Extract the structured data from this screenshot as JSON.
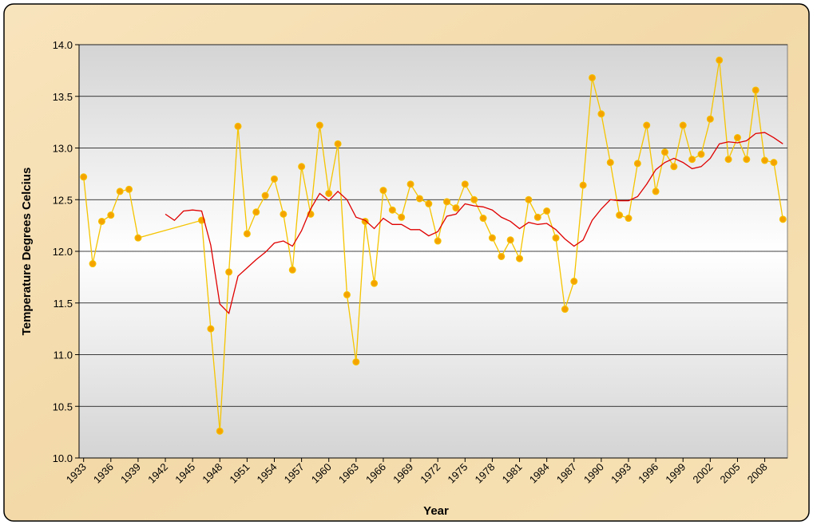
{
  "chart_data": {
    "type": "line",
    "x_label": "Year",
    "y_label": "Temperature Degrees Celcius",
    "xlim": [
      1932.5,
      2010.5
    ],
    "xticks": [
      1933,
      1936,
      1939,
      1942,
      1945,
      1948,
      1951,
      1954,
      1957,
      1960,
      1963,
      1966,
      1969,
      1972,
      1975,
      1978,
      1981,
      1984,
      1987,
      1990,
      1993,
      1996,
      1999,
      2002,
      2005,
      2008
    ],
    "ylim": [
      10,
      14
    ],
    "yticks": [
      {
        "value": 10,
        "label": "10.0"
      },
      {
        "value": 10.5,
        "label": "10.5"
      },
      {
        "value": 11,
        "label": "11.0"
      },
      {
        "value": 11.5,
        "label": "11.5"
      },
      {
        "value": 12,
        "label": "12.0"
      },
      {
        "value": 12.5,
        "label": "12.5"
      },
      {
        "value": 13,
        "label": "13.0"
      },
      {
        "value": 13.5,
        "label": "13.5"
      },
      {
        "value": 14,
        "label": "14.0"
      }
    ],
    "grid": true,
    "series": [
      {
        "color": "#f5c400",
        "marker": "#f5a300",
        "x": [
          1933,
          1934,
          1935,
          1936,
          1937,
          1938,
          1939,
          1946,
          1947,
          1948,
          1949,
          1950,
          1951,
          1952,
          1953,
          1954,
          1955,
          1956,
          1957,
          1958,
          1959,
          1960,
          1961,
          1962,
          1963,
          1964,
          1965,
          1966,
          1967,
          1968,
          1969,
          1970,
          1971,
          1972,
          1973,
          1974,
          1975,
          1976,
          1977,
          1978,
          1979,
          1980,
          1981,
          1982,
          1983,
          1984,
          1985,
          1986,
          1987,
          1988,
          1989,
          1990,
          1991,
          1992,
          1993,
          1994,
          1995,
          1996,
          1997,
          1998,
          1999,
          2000,
          2001,
          2002,
          2003,
          2004,
          2005,
          2006,
          2007,
          2008,
          2009,
          2010
        ],
        "values": [
          12.72,
          11.88,
          12.29,
          12.35,
          12.58,
          12.6,
          12.13,
          12.3,
          11.25,
          10.26,
          11.8,
          13.21,
          12.17,
          12.38,
          12.54,
          12.7,
          12.36,
          11.82,
          12.82,
          12.36,
          13.22,
          12.56,
          13.04,
          11.58,
          10.93,
          12.29,
          11.69,
          12.59,
          12.4,
          12.33,
          12.65,
          12.51,
          12.46,
          12.1,
          12.48,
          12.42,
          12.65,
          12.5,
          12.32,
          12.13,
          11.95,
          12.11,
          11.93,
          12.5,
          12.33,
          12.39,
          12.13,
          11.44,
          11.71,
          12.64,
          13.68,
          13.33,
          12.86,
          12.35,
          12.32,
          12.85,
          13.22,
          12.58,
          12.96,
          12.82,
          13.22,
          12.89,
          12.94,
          13.28,
          13.85,
          12.89,
          13.1,
          12.89,
          13.56,
          12.88,
          12.86,
          12.31
        ]
      },
      {
        "color": "#e00000",
        "x": [
          1942,
          1943,
          1944,
          1945,
          1946,
          1947,
          1948,
          1949,
          1950,
          1951,
          1952,
          1953,
          1954,
          1955,
          1956,
          1957,
          1958,
          1959,
          1960,
          1961,
          1962,
          1963,
          1964,
          1965,
          1966,
          1967,
          1968,
          1969,
          1970,
          1971,
          1972,
          1973,
          1974,
          1975,
          1976,
          1977,
          1978,
          1979,
          1980,
          1981,
          1982,
          1983,
          1984,
          1985,
          1986,
          1987,
          1988,
          1989,
          1990,
          1991,
          1992,
          1993,
          1994,
          1995,
          1996,
          1997,
          1998,
          1999,
          2000,
          2001,
          2002,
          2003,
          2004,
          2005,
          2006,
          2007,
          2008,
          2009,
          2010
        ],
        "values": [
          12.36,
          12.3,
          12.39,
          12.4,
          12.39,
          12.06,
          11.49,
          11.4,
          11.76,
          11.84,
          11.92,
          11.99,
          12.08,
          12.1,
          12.05,
          12.2,
          12.41,
          12.56,
          12.49,
          12.58,
          12.5,
          12.33,
          12.3,
          12.22,
          12.32,
          12.26,
          12.26,
          12.21,
          12.21,
          12.15,
          12.19,
          12.34,
          12.36,
          12.46,
          12.44,
          12.43,
          12.4,
          12.33,
          12.29,
          12.22,
          12.28,
          12.26,
          12.27,
          12.21,
          12.12,
          12.05,
          12.11,
          12.3,
          12.41,
          12.5,
          12.49,
          12.49,
          12.53,
          12.65,
          12.79,
          12.86,
          12.9,
          12.86,
          12.8,
          12.82,
          12.9,
          13.04,
          13.06,
          13.05,
          13.07,
          13.14,
          13.15,
          13.1,
          13.04
        ]
      }
    ]
  }
}
